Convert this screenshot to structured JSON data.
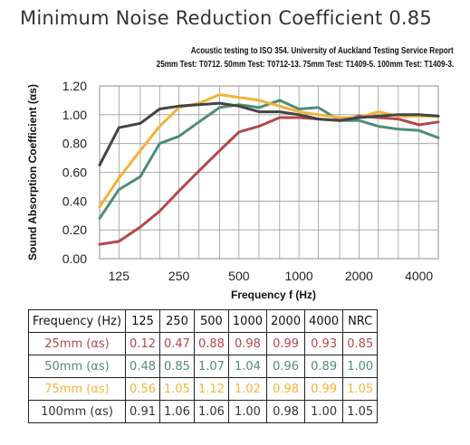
{
  "chart_data": {
    "type": "line",
    "title": "Minimum Noise Reduction Coefficient 0.85",
    "subtitle_lines": [
      "Acoustic testing to ISO 354. University of Auckland Testing Service Report",
      "25mm Test: T0712. 50mm Test: T0712-13. 75mm Test: T1409-5. 100mm Test: T1409-3."
    ],
    "xlabel": "Frequency f (Hz)",
    "ylabel": "Sound Absorption Coefficient (αs)",
    "x_scale": "log",
    "x_tick_labels": [
      "125",
      "250",
      "500",
      "1000",
      "2000",
      "4000"
    ],
    "x_tick_values": [
      125,
      250,
      500,
      1000,
      2000,
      4000
    ],
    "x_range": [
      100,
      5000
    ],
    "ylim": [
      0,
      1.2
    ],
    "y_tick_labels": [
      "0.00",
      "0.20",
      "0.40",
      "0.60",
      "0.80",
      "1.00",
      "1.20"
    ],
    "y_tick_values": [
      0,
      0.2,
      0.4,
      0.6,
      0.8,
      1.0,
      1.2
    ],
    "grid": true,
    "x": [
      100,
      125,
      160,
      200,
      250,
      315,
      400,
      500,
      630,
      800,
      1000,
      1250,
      1600,
      2000,
      2500,
      3150,
      4000,
      5000
    ],
    "series": [
      {
        "name": "25mm",
        "color": "#b5474a",
        "values": [
          0.1,
          0.12,
          0.22,
          0.33,
          0.47,
          0.61,
          0.75,
          0.88,
          0.92,
          0.98,
          0.98,
          0.97,
          0.96,
          0.99,
          0.98,
          0.97,
          0.93,
          0.95
        ]
      },
      {
        "name": "50mm",
        "color": "#4d8d7a",
        "values": [
          0.28,
          0.48,
          0.57,
          0.8,
          0.85,
          0.95,
          1.05,
          1.07,
          1.05,
          1.1,
          1.04,
          1.05,
          0.96,
          0.96,
          0.92,
          0.9,
          0.89,
          0.84
        ]
      },
      {
        "name": "75mm",
        "color": "#f4b237",
        "values": [
          0.36,
          0.56,
          0.75,
          0.92,
          1.05,
          1.08,
          1.14,
          1.12,
          1.1,
          1.06,
          1.02,
          1.0,
          0.98,
          0.98,
          1.02,
          0.99,
          0.99,
          0.99
        ]
      },
      {
        "name": "100mm",
        "color": "#444444",
        "values": [
          0.65,
          0.91,
          0.94,
          1.04,
          1.06,
          1.07,
          1.08,
          1.06,
          1.02,
          1.02,
          1.0,
          0.97,
          0.96,
          0.98,
          0.99,
          1.0,
          1.0,
          0.99
        ]
      }
    ]
  },
  "table": {
    "headers": [
      "Frequency (Hz)",
      "125",
      "250",
      "500",
      "1000",
      "2000",
      "4000",
      "NRC"
    ],
    "rows": [
      {
        "label": "25mm (αs)",
        "color": "#b5474a",
        "values": [
          "0.12",
          "0.47",
          "0.88",
          "0.98",
          "0.99",
          "0.93",
          "0.85"
        ]
      },
      {
        "label": "50mm (αs)",
        "color": "#4d8d7a",
        "values": [
          "0.48",
          "0.85",
          "1.07",
          "1.04",
          "0.96",
          "0.89",
          "1.00"
        ]
      },
      {
        "label": "75mm (αs)",
        "color": "#f4b237",
        "values": [
          "0.56",
          "1.05",
          "1.12",
          "1.02",
          "0.98",
          "0.99",
          "1.05"
        ]
      },
      {
        "label": "100mm (αs)",
        "color": "#333333",
        "values": [
          "0.91",
          "1.06",
          "1.06",
          "1.00",
          "0.98",
          "1.00",
          "1.05"
        ]
      }
    ]
  }
}
